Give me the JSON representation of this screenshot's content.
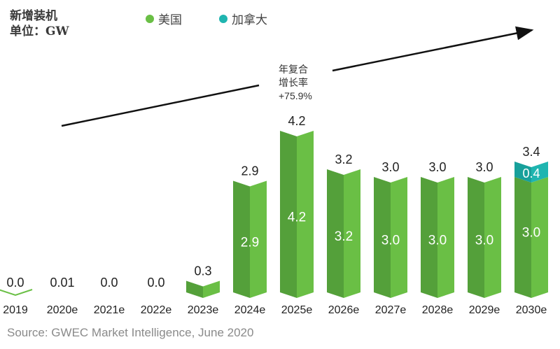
{
  "title_line1": "新增装机",
  "title_line2": "单位：GW",
  "annotation": {
    "line1": "年复合",
    "line2": "增长率",
    "line3": "+75.9%"
  },
  "source": "Source: GWEC Market Intelligence, June 2020",
  "colors": {
    "us": "#6abf45",
    "us_dark": "#54a03a",
    "canada": "#1fb5b0",
    "canada_dark": "#17a09b"
  },
  "chart_data": {
    "type": "bar",
    "stacked": true,
    "categories": [
      "2019",
      "2020e",
      "2021e",
      "2022e",
      "2023e",
      "2024e",
      "2025e",
      "2026e",
      "2027e",
      "2028e",
      "2029e",
      "2030e"
    ],
    "series": [
      {
        "name": "美国",
        "values": [
          0.0,
          0.01,
          0.0,
          0.0,
          0.3,
          2.9,
          4.2,
          3.2,
          3.0,
          3.0,
          3.0,
          3.0
        ],
        "inner_labels": [
          "",
          "",
          "",
          "",
          "",
          "2.9",
          "4.2",
          "3.2",
          "3.0",
          "3.0",
          "3.0",
          "3.0"
        ]
      },
      {
        "name": "加拿大",
        "values": [
          0,
          0,
          0,
          0,
          0,
          0,
          0,
          0,
          0,
          0,
          0,
          0.4
        ],
        "inner_labels": [
          "",
          "",
          "",
          "",
          "",
          "",
          "",
          "",
          "",
          "",
          "",
          "0.4"
        ]
      }
    ],
    "total_labels": [
      "0.0",
      "0.01",
      "0.0",
      "0.0",
      "0.3",
      "2.9",
      "4.2",
      "3.2",
      "3.0",
      "3.0",
      "3.0",
      "3.4"
    ],
    "legend_position": "top",
    "grid": false
  }
}
